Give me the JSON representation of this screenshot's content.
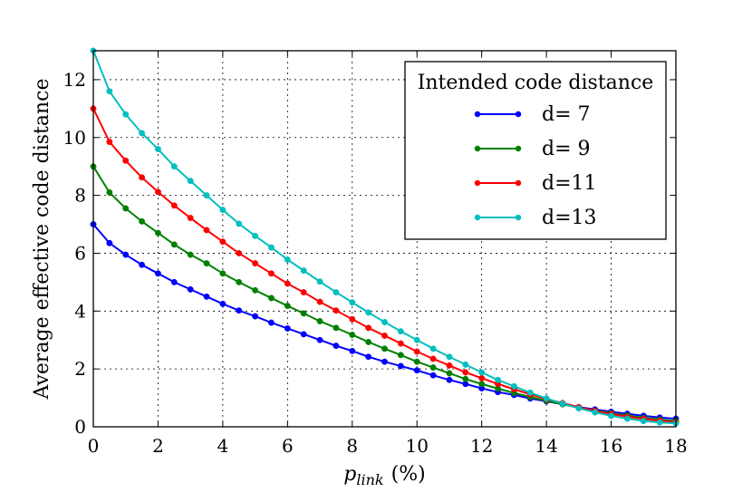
{
  "chart_data": {
    "type": "line",
    "title": "",
    "xlabel": "p",
    "xlabel_sub": "link",
    "xlabel_unit": "(%)",
    "ylabel": "Average effective code distance",
    "xlim": [
      0,
      18
    ],
    "ylim": [
      0,
      13
    ],
    "xticks": [
      0,
      2,
      4,
      6,
      8,
      10,
      12,
      14,
      16,
      18
    ],
    "yticks": [
      0,
      2,
      4,
      6,
      8,
      10,
      12
    ],
    "grid": true,
    "legend": {
      "title": "Intended code distance",
      "position": "top-right"
    },
    "x": [
      0,
      0.5,
      1,
      1.5,
      2,
      2.5,
      3,
      3.5,
      4,
      4.5,
      5,
      5.5,
      6,
      6.5,
      7,
      7.5,
      8,
      8.5,
      9,
      9.5,
      10,
      10.5,
      11,
      11.5,
      12,
      12.5,
      13,
      13.5,
      14,
      14.5,
      15,
      15.5,
      16,
      16.5,
      17,
      17.5,
      18
    ],
    "series": [
      {
        "name": "d= 7",
        "color": "#0000ff",
        "values": [
          7.0,
          6.35,
          5.95,
          5.6,
          5.3,
          5.0,
          4.75,
          4.5,
          4.25,
          4.02,
          3.82,
          3.6,
          3.4,
          3.2,
          3.0,
          2.8,
          2.62,
          2.42,
          2.25,
          2.1,
          1.95,
          1.78,
          1.62,
          1.48,
          1.33,
          1.2,
          1.1,
          0.98,
          0.88,
          0.78,
          0.68,
          0.6,
          0.52,
          0.45,
          0.38,
          0.32,
          0.28
        ]
      },
      {
        "name": "d= 9",
        "color": "#008000",
        "values": [
          9.0,
          8.1,
          7.55,
          7.1,
          6.7,
          6.3,
          5.95,
          5.65,
          5.3,
          5.0,
          4.72,
          4.45,
          4.18,
          3.92,
          3.65,
          3.42,
          3.18,
          2.93,
          2.7,
          2.48,
          2.25,
          2.05,
          1.85,
          1.65,
          1.48,
          1.32,
          1.17,
          1.03,
          0.9,
          0.78,
          0.66,
          0.56,
          0.47,
          0.39,
          0.31,
          0.25,
          0.2
        ]
      },
      {
        "name": "d=11",
        "color": "#ff0000",
        "values": [
          11.0,
          9.85,
          9.2,
          8.62,
          8.12,
          7.65,
          7.22,
          6.8,
          6.4,
          6.0,
          5.65,
          5.3,
          4.95,
          4.65,
          4.32,
          4.02,
          3.72,
          3.42,
          3.15,
          2.88,
          2.6,
          2.35,
          2.12,
          1.88,
          1.68,
          1.48,
          1.3,
          1.12,
          0.96,
          0.82,
          0.68,
          0.55,
          0.44,
          0.35,
          0.27,
          0.21,
          0.16
        ]
      },
      {
        "name": "d=13",
        "color": "#00bfbf",
        "values": [
          13.0,
          11.6,
          10.8,
          10.15,
          9.6,
          9.0,
          8.5,
          8.0,
          7.5,
          7.02,
          6.6,
          6.2,
          5.78,
          5.4,
          5.02,
          4.65,
          4.3,
          3.95,
          3.62,
          3.3,
          3.0,
          2.7,
          2.42,
          2.15,
          1.88,
          1.62,
          1.4,
          1.18,
          0.98,
          0.8,
          0.64,
          0.5,
          0.38,
          0.28,
          0.2,
          0.15,
          0.12
        ]
      }
    ]
  }
}
